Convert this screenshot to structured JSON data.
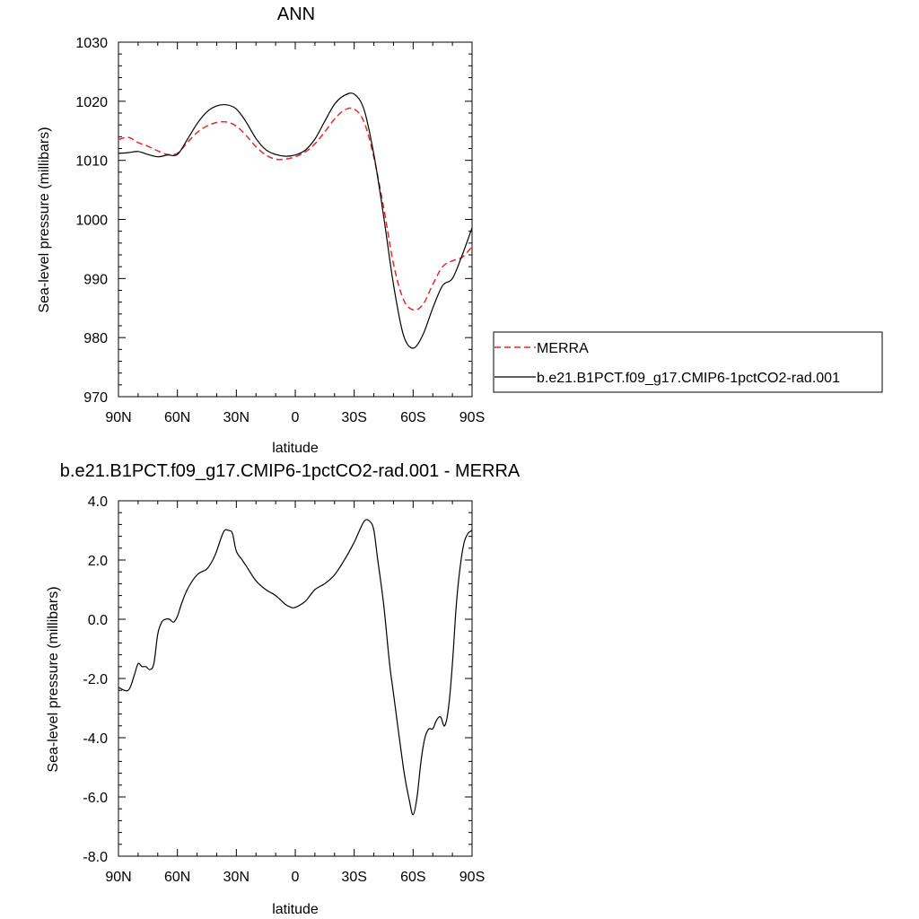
{
  "chart_data": [
    {
      "type": "line",
      "title": "ANN",
      "xlabel": "latitude",
      "ylabel": "Sea-level pressure (millibars)",
      "xlim": [
        90,
        -90
      ],
      "ylim": [
        970,
        1030
      ],
      "x_ticks": [
        90,
        60,
        30,
        0,
        -30,
        -60,
        -90
      ],
      "x_tick_labels": [
        "90N",
        "60N",
        "30N",
        "0",
        "30S",
        "60S",
        "90S"
      ],
      "y_ticks": [
        970,
        980,
        990,
        1000,
        1010,
        1020,
        1030
      ],
      "y_tick_labels": [
        "970",
        "980",
        "990",
        "1000",
        "1010",
        "1020",
        "1030"
      ],
      "legend_position": "right",
      "series": [
        {
          "name": "MERRA",
          "color": "#e8262b",
          "dash": "dashed",
          "x": [
            90,
            85,
            80,
            75,
            70,
            65,
            60,
            55,
            50,
            45,
            40,
            35,
            30,
            25,
            20,
            15,
            10,
            5,
            0,
            -5,
            -10,
            -15,
            -20,
            -25,
            -30,
            -35,
            -40,
            -45,
            -50,
            -55,
            -60,
            -65,
            -70,
            -75,
            -80,
            -85,
            -90
          ],
          "values": [
            1013.5,
            1013.9,
            1013.0,
            1012.4,
            1011.6,
            1011.0,
            1011.2,
            1013.0,
            1014.7,
            1015.8,
            1016.4,
            1016.5,
            1015.8,
            1014.2,
            1012.3,
            1010.9,
            1010.2,
            1010.2,
            1010.6,
            1011.4,
            1012.8,
            1014.8,
            1017.0,
            1018.5,
            1018.7,
            1016.5,
            1010.5,
            1002.0,
            992.5,
            986.5,
            984.7,
            985.6,
            989.0,
            992.0,
            993.0,
            993.6,
            995.4
          ]
        },
        {
          "name": "b.e21.B1PCT.f09_g17.CMIP6-1pctCO2-rad.001",
          "color": "#000000",
          "dash": "solid",
          "x": [
            90,
            85,
            80,
            75,
            70,
            65,
            60,
            55,
            50,
            45,
            40,
            35,
            30,
            25,
            20,
            15,
            10,
            5,
            0,
            -5,
            -10,
            -15,
            -20,
            -25,
            -30,
            -35,
            -40,
            -45,
            -50,
            -55,
            -60,
            -65,
            -70,
            -75,
            -80,
            -85,
            -90
          ],
          "values": [
            1011.2,
            1011.3,
            1011.5,
            1011.0,
            1010.6,
            1010.9,
            1011.0,
            1013.5,
            1016.2,
            1018.2,
            1019.2,
            1019.4,
            1018.7,
            1016.5,
            1013.7,
            1011.8,
            1011.0,
            1010.7,
            1010.9,
            1011.7,
            1013.6,
            1016.6,
            1019.5,
            1021.0,
            1021.2,
            1018.6,
            1011.0,
            1000.5,
            989.0,
            980.5,
            978.2,
            980.5,
            985.0,
            988.8,
            990.0,
            994.0,
            998.6
          ]
        }
      ]
    },
    {
      "type": "line",
      "title": "b.e21.B1PCT.f09_g17.CMIP6-1pctCO2-rad.001 - MERRA",
      "xlabel": "latitude",
      "ylabel": "Sea-level pressure (millibars)",
      "xlim": [
        90,
        -90
      ],
      "ylim": [
        -8,
        4
      ],
      "x_ticks": [
        90,
        60,
        30,
        0,
        -30,
        -60,
        -90
      ],
      "x_tick_labels": [
        "90N",
        "60N",
        "30N",
        "0",
        "30S",
        "60S",
        "90S"
      ],
      "y_ticks": [
        -8,
        -6,
        -4,
        -2,
        0,
        2,
        4
      ],
      "y_tick_labels": [
        "-8.0",
        "-6.0",
        "-4.0",
        "-2.0",
        "0.0",
        "2.0",
        "4.0"
      ],
      "series": [
        {
          "color": "#000000",
          "dash": "solid",
          "x": [
            90,
            85,
            82,
            80,
            78,
            76,
            74,
            72,
            70,
            68,
            66,
            64,
            62,
            60,
            58,
            55,
            50,
            45,
            42,
            40,
            38,
            36,
            34,
            32,
            30,
            27,
            25,
            20,
            15,
            10,
            5,
            2,
            0,
            -5,
            -10,
            -15,
            -20,
            -25,
            -30,
            -35,
            -38,
            -40,
            -42,
            -45,
            -48,
            -50,
            -55,
            -58,
            -60,
            -62,
            -64,
            -66,
            -68,
            -70,
            -72,
            -74,
            -76,
            -78,
            -80,
            -82,
            -84,
            -86,
            -88,
            -90
          ],
          "values": [
            -2.3,
            -2.4,
            -1.9,
            -1.5,
            -1.6,
            -1.6,
            -1.7,
            -1.5,
            -0.5,
            -0.1,
            0.0,
            0.0,
            -0.1,
            0.1,
            0.5,
            1.0,
            1.5,
            1.7,
            2.0,
            2.3,
            2.7,
            3.0,
            3.0,
            2.9,
            2.3,
            2.0,
            1.8,
            1.3,
            1.0,
            0.8,
            0.5,
            0.4,
            0.4,
            0.6,
            1.0,
            1.2,
            1.5,
            2.0,
            2.6,
            3.3,
            3.3,
            3.0,
            2.0,
            0.5,
            -1.5,
            -2.5,
            -5.0,
            -6.1,
            -6.6,
            -6.0,
            -4.8,
            -4.0,
            -3.7,
            -3.7,
            -3.4,
            -3.3,
            -3.6,
            -3.0,
            -1.5,
            0.5,
            1.8,
            2.6,
            2.9,
            3.0
          ]
        }
      ]
    }
  ]
}
